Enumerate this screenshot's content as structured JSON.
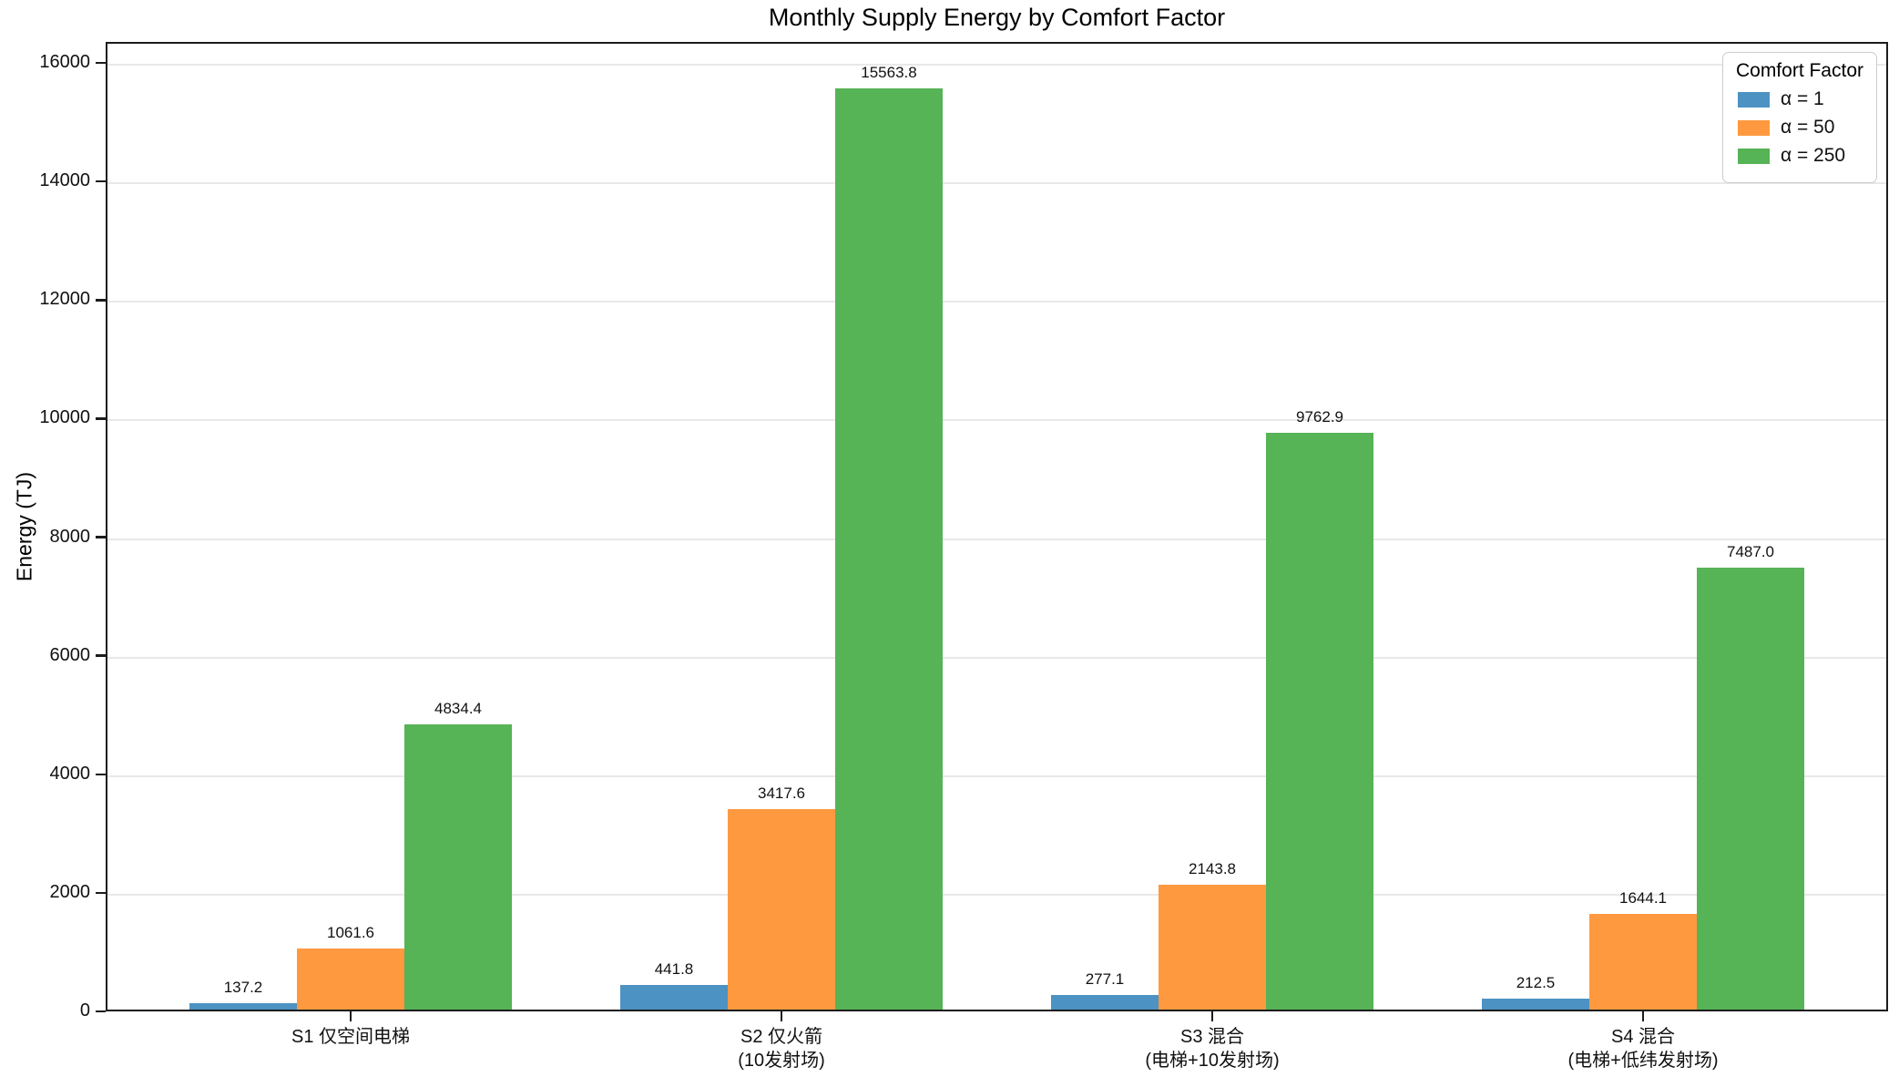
{
  "chart_data": {
    "type": "bar",
    "title": "Monthly Supply Energy by Comfort Factor",
    "ylabel": "Energy (TJ)",
    "xlabel": "",
    "ylim": [
      0,
      16000
    ],
    "yticks": [
      0,
      2000,
      4000,
      6000,
      8000,
      10000,
      12000,
      14000,
      16000
    ],
    "grid": true,
    "categories": [
      "S1 仅空间电梯",
      "S2 仅火箭\n(10发射场)",
      "S3 混合\n(电梯+10发射场)",
      "S4 混合\n(电梯+低纬发射场)"
    ],
    "series": [
      {
        "name": "α = 1",
        "color": "#4C92C3",
        "values": [
          137.2,
          441.8,
          277.1,
          212.5
        ]
      },
      {
        "name": "α = 50",
        "color": "#FF993F",
        "values": [
          1061.6,
          3417.6,
          2143.8,
          1644.1
        ]
      },
      {
        "name": "α = 250",
        "color": "#56B356",
        "values": [
          4834.4,
          15563.8,
          9762.9,
          7487.0
        ]
      }
    ],
    "legend": {
      "title": "Comfort Factor",
      "position": "upper right"
    },
    "value_label_decimals": 1
  }
}
